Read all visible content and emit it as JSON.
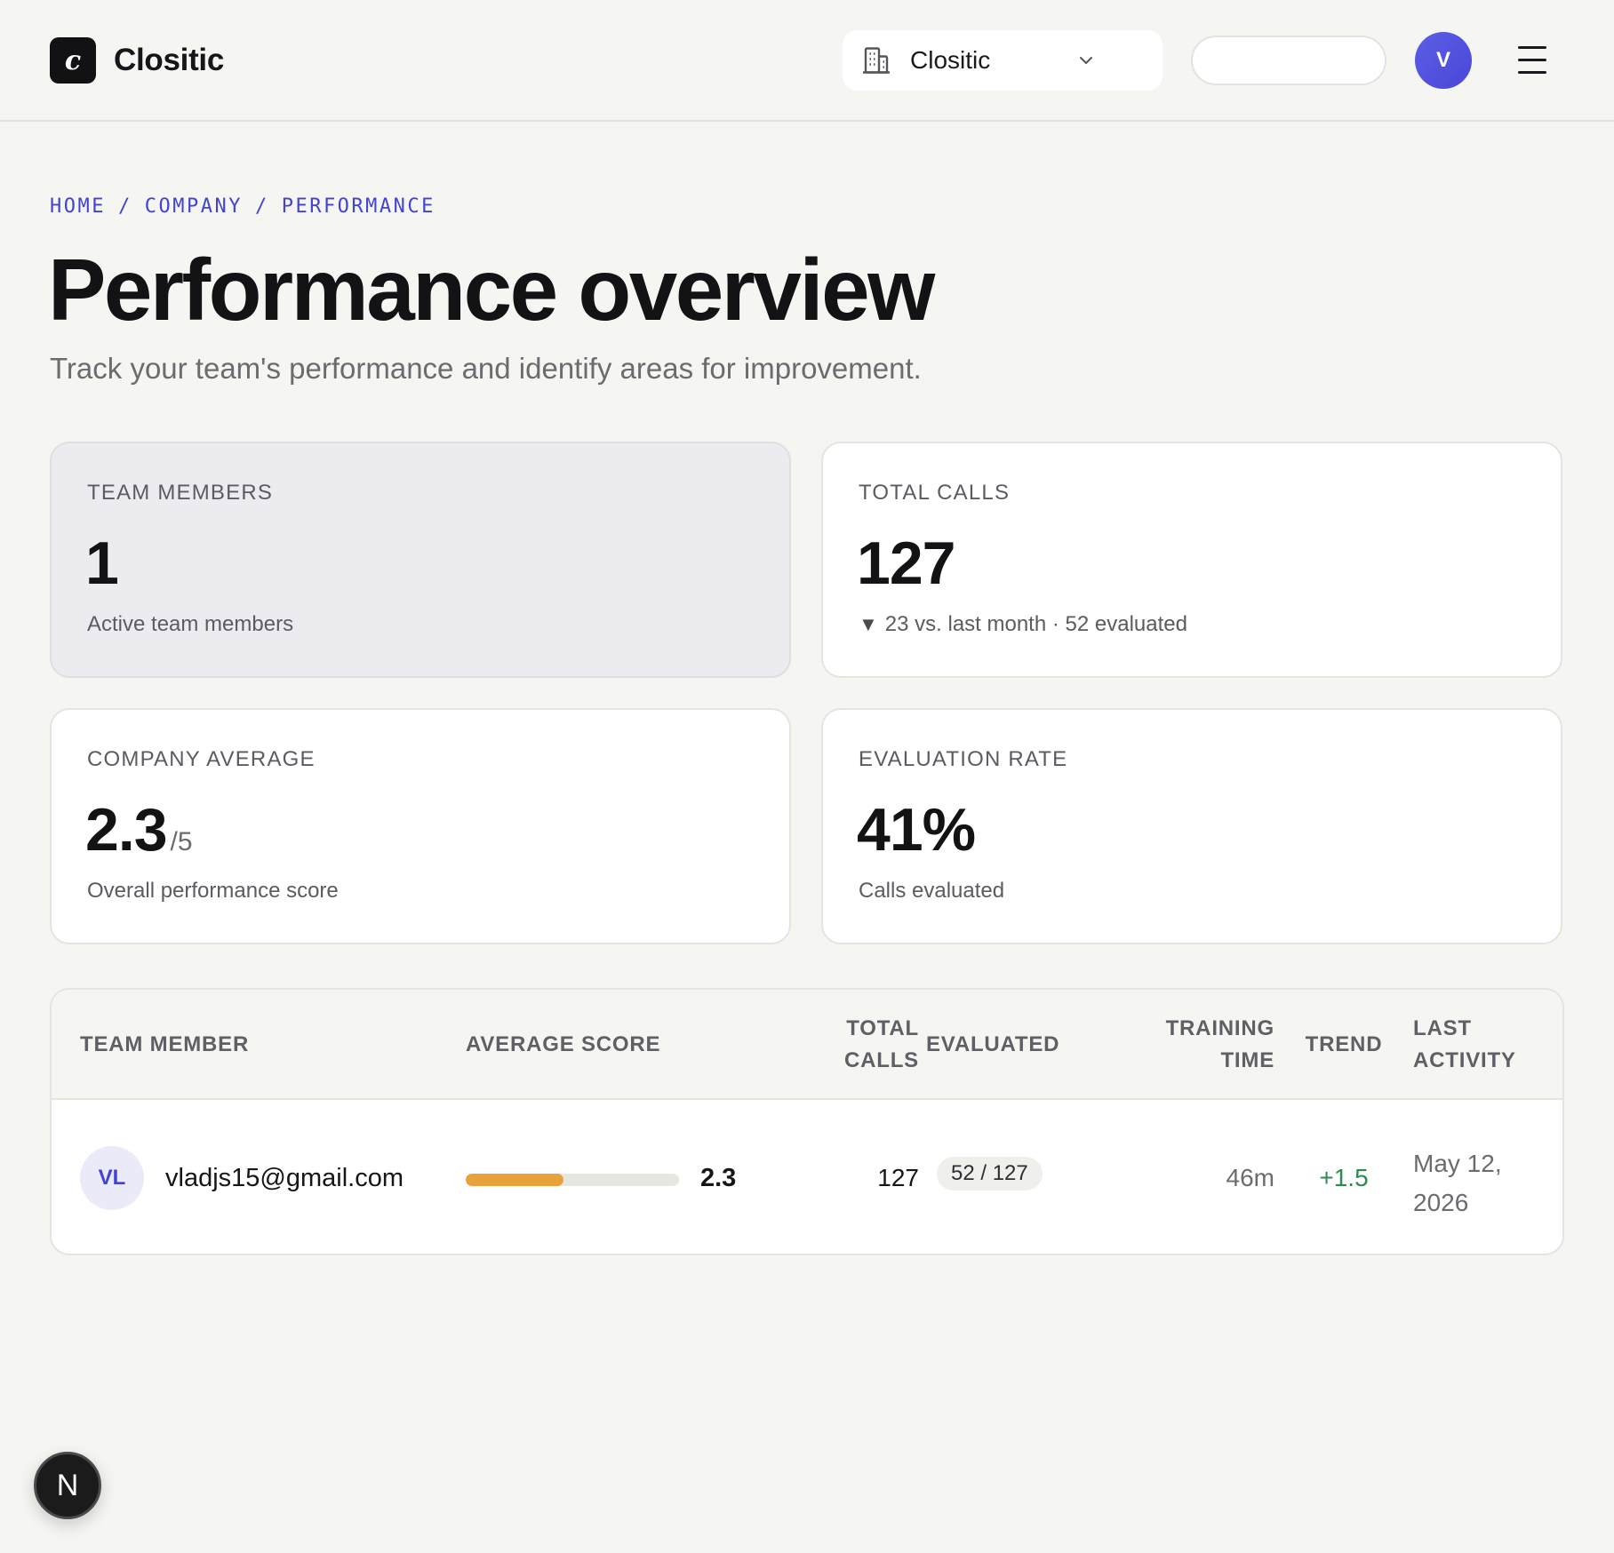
{
  "header": {
    "logo_letter": "c",
    "brand": "Clositic",
    "org_select": {
      "value": "Clositic",
      "icon": "building-icon"
    },
    "search": {
      "placeholder": ""
    },
    "avatar_initial": "V",
    "menu_icon": "hamburger-icon"
  },
  "breadcrumb": [
    "HOME",
    "COMPANY",
    "PERFORMANCE"
  ],
  "breadcrumb_sep": "/",
  "page": {
    "title": "Performance overview",
    "subtitle": "Track your team's performance and identify areas for improvement."
  },
  "stats": [
    {
      "label": "TEAM MEMBERS",
      "value": "1",
      "note": "Active team members"
    },
    {
      "label": "TOTAL CALLS",
      "value": "127",
      "note_icon": "▼",
      "note": "23 vs. last month · 52 evaluated"
    },
    {
      "label": "COMPANY AVERAGE",
      "value": "2.3",
      "suffix": "/5",
      "note": "Overall performance score"
    },
    {
      "label": "EVALUATION RATE",
      "value": "41%",
      "note": "Calls evaluated"
    }
  ],
  "table": {
    "columns": [
      "TEAM MEMBER",
      "AVERAGE SCORE",
      "TOTAL CALLS",
      "EVALUATED",
      "TRAINING TIME",
      "TREND",
      "LAST ACTIVITY"
    ],
    "column_lines": {
      "total_calls": [
        "TOTAL",
        "CALLS"
      ],
      "training_time": [
        "TRAINING",
        "TIME"
      ],
      "last_activity": [
        "LAST",
        "ACTIVITY"
      ]
    },
    "rows": [
      {
        "initials": "VL",
        "email": "vladjs15@gmail.com",
        "score": "2.3",
        "score_fraction": 0.46,
        "total_calls": "127",
        "evaluated": "52 / 127",
        "training_time": "46m",
        "trend": "+1.5",
        "last_activity_lines": [
          "May 12,",
          "2026"
        ]
      }
    ]
  },
  "colors": {
    "accent": "#4343d1",
    "score_bar": "#e9a23b",
    "trend_positive": "#2f8a4f"
  },
  "floating_badge": "N"
}
